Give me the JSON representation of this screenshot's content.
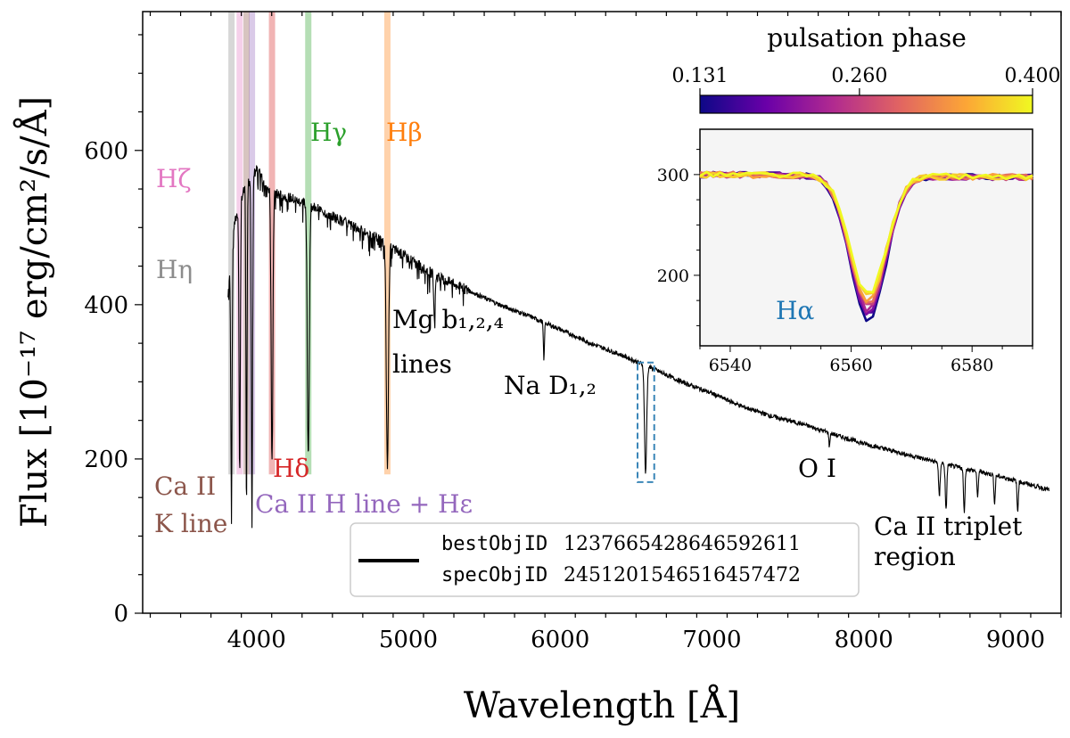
{
  "chart_data": {
    "type": "line",
    "ylabel": "Flux [10⁻¹⁷ erg/cm²/s/Å]",
    "xlabel": "Wavelength [Å]",
    "xlim": [
      3250,
      9300
    ],
    "ylim": [
      0,
      780
    ],
    "x_ticks": [
      4000,
      5000,
      6000,
      7000,
      8000,
      9000
    ],
    "y_ticks": [
      0,
      200,
      400,
      600
    ],
    "legend": {
      "line1_mono": "bestObjID",
      "line1_value": "1237665428646592611",
      "line2_mono": "specObjID",
      "line2_value": "2451201546516457472"
    },
    "continuum": {
      "x": [
        3810,
        3850,
        3900,
        3950,
        4000,
        4050,
        4100,
        4200,
        4400,
        4600,
        4800,
        5000,
        5200,
        5400,
        5600,
        5800,
        6000,
        6200,
        6400,
        6600,
        6800,
        7000,
        7200,
        7400,
        7600,
        7800,
        8000,
        8200,
        8400,
        8600,
        8800,
        9000,
        9220
      ],
      "y": [
        410,
        500,
        540,
        560,
        575,
        560,
        545,
        540,
        525,
        505,
        485,
        460,
        435,
        418,
        400,
        385,
        368,
        350,
        335,
        318,
        300,
        285,
        268,
        255,
        245,
        232,
        220,
        210,
        200,
        190,
        182,
        172,
        160
      ]
    },
    "absorption_lines": [
      {
        "x": 3835,
        "depth": 320,
        "width": 6
      },
      {
        "x": 3889,
        "depth": 350,
        "width": 6
      },
      {
        "x": 3934,
        "depth": 420,
        "width": 5
      },
      {
        "x": 3970,
        "depth": 450,
        "width": 6
      },
      {
        "x": 4102,
        "depth": 350,
        "width": 8
      },
      {
        "x": 4341,
        "depth": 330,
        "width": 9
      },
      {
        "x": 4862,
        "depth": 285,
        "width": 10
      },
      {
        "x": 5172,
        "depth": 60,
        "width": 6
      },
      {
        "x": 5893,
        "depth": 50,
        "width": 5
      },
      {
        "x": 6563,
        "depth": 140,
        "width": 10
      },
      {
        "x": 7774,
        "depth": 18,
        "width": 5
      },
      {
        "x": 8498,
        "depth": 45,
        "width": 7
      },
      {
        "x": 8542,
        "depth": 60,
        "width": 7
      },
      {
        "x": 8662,
        "depth": 55,
        "width": 7
      },
      {
        "x": 8750,
        "depth": 35,
        "width": 6
      },
      {
        "x": 8862,
        "depth": 38,
        "width": 6
      },
      {
        "x": 9014,
        "depth": 40,
        "width": 6
      }
    ],
    "bands": [
      {
        "x": 3835,
        "color": "#8c8c8c"
      },
      {
        "x": 3889,
        "color": "#e377c2"
      },
      {
        "x": 3934,
        "color": "#8c564b"
      },
      {
        "x": 3970,
        "color": "#9467bd"
      },
      {
        "x": 4102,
        "color": "#d62728"
      },
      {
        "x": 4341,
        "color": "#2ca02c"
      },
      {
        "x": 4862,
        "color": "#ff7f0e"
      }
    ],
    "highlight_box": {
      "x0": 6510,
      "x1": 6620,
      "y0": 170,
      "y1": 325,
      "color": "#3a86b8"
    },
    "annotations": {
      "h_gamma": "Hγ",
      "h_beta": "Hβ",
      "h_zeta": "Hζ",
      "h_eta": "Hη",
      "h_delta": "Hδ",
      "mg_line1": "Mg b₁,₂,₄",
      "mg_line2": "lines",
      "na": "Na D₁,₂",
      "o1": "O I",
      "ca_k_line1": "Ca II",
      "ca_k_line2": "K line",
      "ca_h": "Ca II H line + Hε",
      "ca_trip_line1": "Ca II triplet",
      "ca_trip_line2": "region"
    },
    "colors": {
      "h_gamma": "#2ca02c",
      "h_beta": "#ff7f0e",
      "h_zeta": "#e377c2",
      "h_eta": "#8c8c8c",
      "h_delta": "#d62728",
      "ca_k": "#8c564b",
      "ca_h": "#9467bd",
      "h_alpha": "#1f77b4"
    },
    "inset": {
      "xlim": [
        6535,
        6590
      ],
      "ylim": [
        130,
        345
      ],
      "x_ticks": [
        6540,
        6560,
        6580
      ],
      "y_ticks": [
        200,
        300
      ],
      "label": "Hα",
      "line_center": 6562.8,
      "curves": [
        {
          "phase": 0.131,
          "min": 155
        },
        {
          "phase": 0.165,
          "min": 160
        },
        {
          "phase": 0.2,
          "min": 163
        },
        {
          "phase": 0.235,
          "min": 166
        },
        {
          "phase": 0.26,
          "min": 169
        },
        {
          "phase": 0.3,
          "min": 172
        },
        {
          "phase": 0.34,
          "min": 175
        },
        {
          "phase": 0.37,
          "min": 178
        },
        {
          "phase": 0.4,
          "min": 181
        }
      ]
    },
    "colorbar": {
      "title": "pulsation phase",
      "ticks": [
        "0.131",
        "0.260",
        "0.400"
      ],
      "stops": [
        "#0d0887",
        "#6a00a8",
        "#b12a90",
        "#e16462",
        "#fca636",
        "#f0f921"
      ]
    }
  }
}
